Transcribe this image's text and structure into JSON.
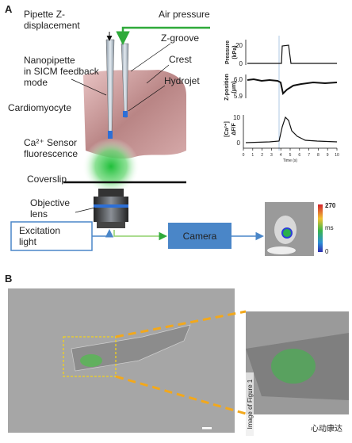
{
  "panel_a": {
    "label": "A",
    "pipette_z": [
      "Pipette Z-",
      "displacement"
    ],
    "air_pressure": "Air pressure",
    "nanopipette": [
      "Nanopipette",
      "in SICM feedback",
      "mode"
    ],
    "z_groove": "Z-groove",
    "crest": "Crest",
    "hydrojet": "Hydrojet",
    "cardiomyocyte": "Cardiomyocyte",
    "sensor": [
      "Ca²⁺ Sensor",
      "fluorescence"
    ],
    "coverslip": "Coverslip",
    "objective": [
      "Objective",
      "lens"
    ],
    "excitation": [
      "Excitation",
      "light"
    ],
    "camera": "Camera",
    "colorbar": {
      "max": "270",
      "unit": "ms",
      "min": "0"
    },
    "traces": {
      "pressure_label": [
        "Pressure",
        "(kPa)"
      ],
      "pressure_ticks": [
        "20",
        "0"
      ],
      "z_label": [
        "Z-position",
        "(μm)"
      ],
      "z_ticks": [
        "6.0",
        "5.9"
      ],
      "ca_label": [
        "[Ca²⁺]",
        "ΔF/F"
      ],
      "ca_ticks": [
        "10",
        "0"
      ],
      "xlim": [
        0,
        10
      ],
      "xticks": [
        0,
        1,
        2,
        3,
        4,
        5,
        6,
        7,
        8,
        9,
        10
      ],
      "x_label": "Time (s)"
    }
  },
  "panel_b": {
    "label": "B",
    "watermark": "Image of Figure 1",
    "source": "心动康达"
  }
}
